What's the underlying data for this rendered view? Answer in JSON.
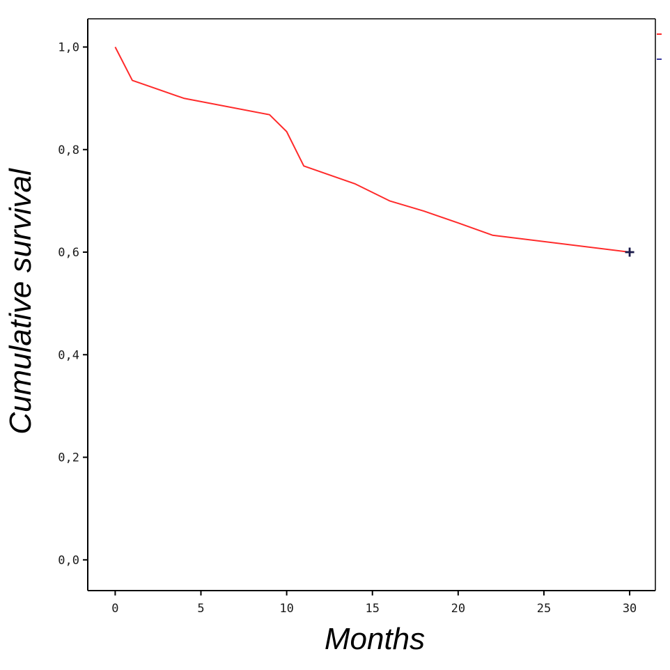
{
  "chart_data": {
    "type": "line",
    "title": "",
    "xlabel": "Months",
    "ylabel": "Cumulative survival",
    "xlim": [
      -1.6,
      31.5
    ],
    "ylim": [
      -0.06,
      1.055
    ],
    "x_ticks": [
      0,
      5,
      10,
      15,
      20,
      25,
      30
    ],
    "x_tick_labels": [
      "0",
      "5",
      "10",
      "15",
      "20",
      "25",
      "30"
    ],
    "y_ticks": [
      0.0,
      0.2,
      0.4,
      0.6,
      0.8,
      1.0
    ],
    "y_tick_labels": [
      "0,0",
      "0,2",
      "0,4",
      "0,6",
      "0,8",
      "1,0"
    ],
    "grid": false,
    "series": [
      {
        "name": "Cumulative survival",
        "color": "#ff2a2a",
        "x": [
          0,
          1,
          4,
          9,
          10,
          11,
          14,
          16,
          18,
          20,
          22,
          30
        ],
        "y": [
          1.0,
          0.935,
          0.9,
          0.868,
          0.835,
          0.768,
          0.733,
          0.7,
          0.68,
          0.657,
          0.633,
          0.6
        ]
      }
    ],
    "censored": [
      {
        "x": 30,
        "y": 0.6,
        "symbol": "+",
        "color": "#1a1a4a"
      }
    ],
    "legend_fragments": [
      {
        "color": "#ff2a2a",
        "position": "top-right"
      },
      {
        "color": "#3a3aa0",
        "position": "top-right"
      }
    ]
  }
}
